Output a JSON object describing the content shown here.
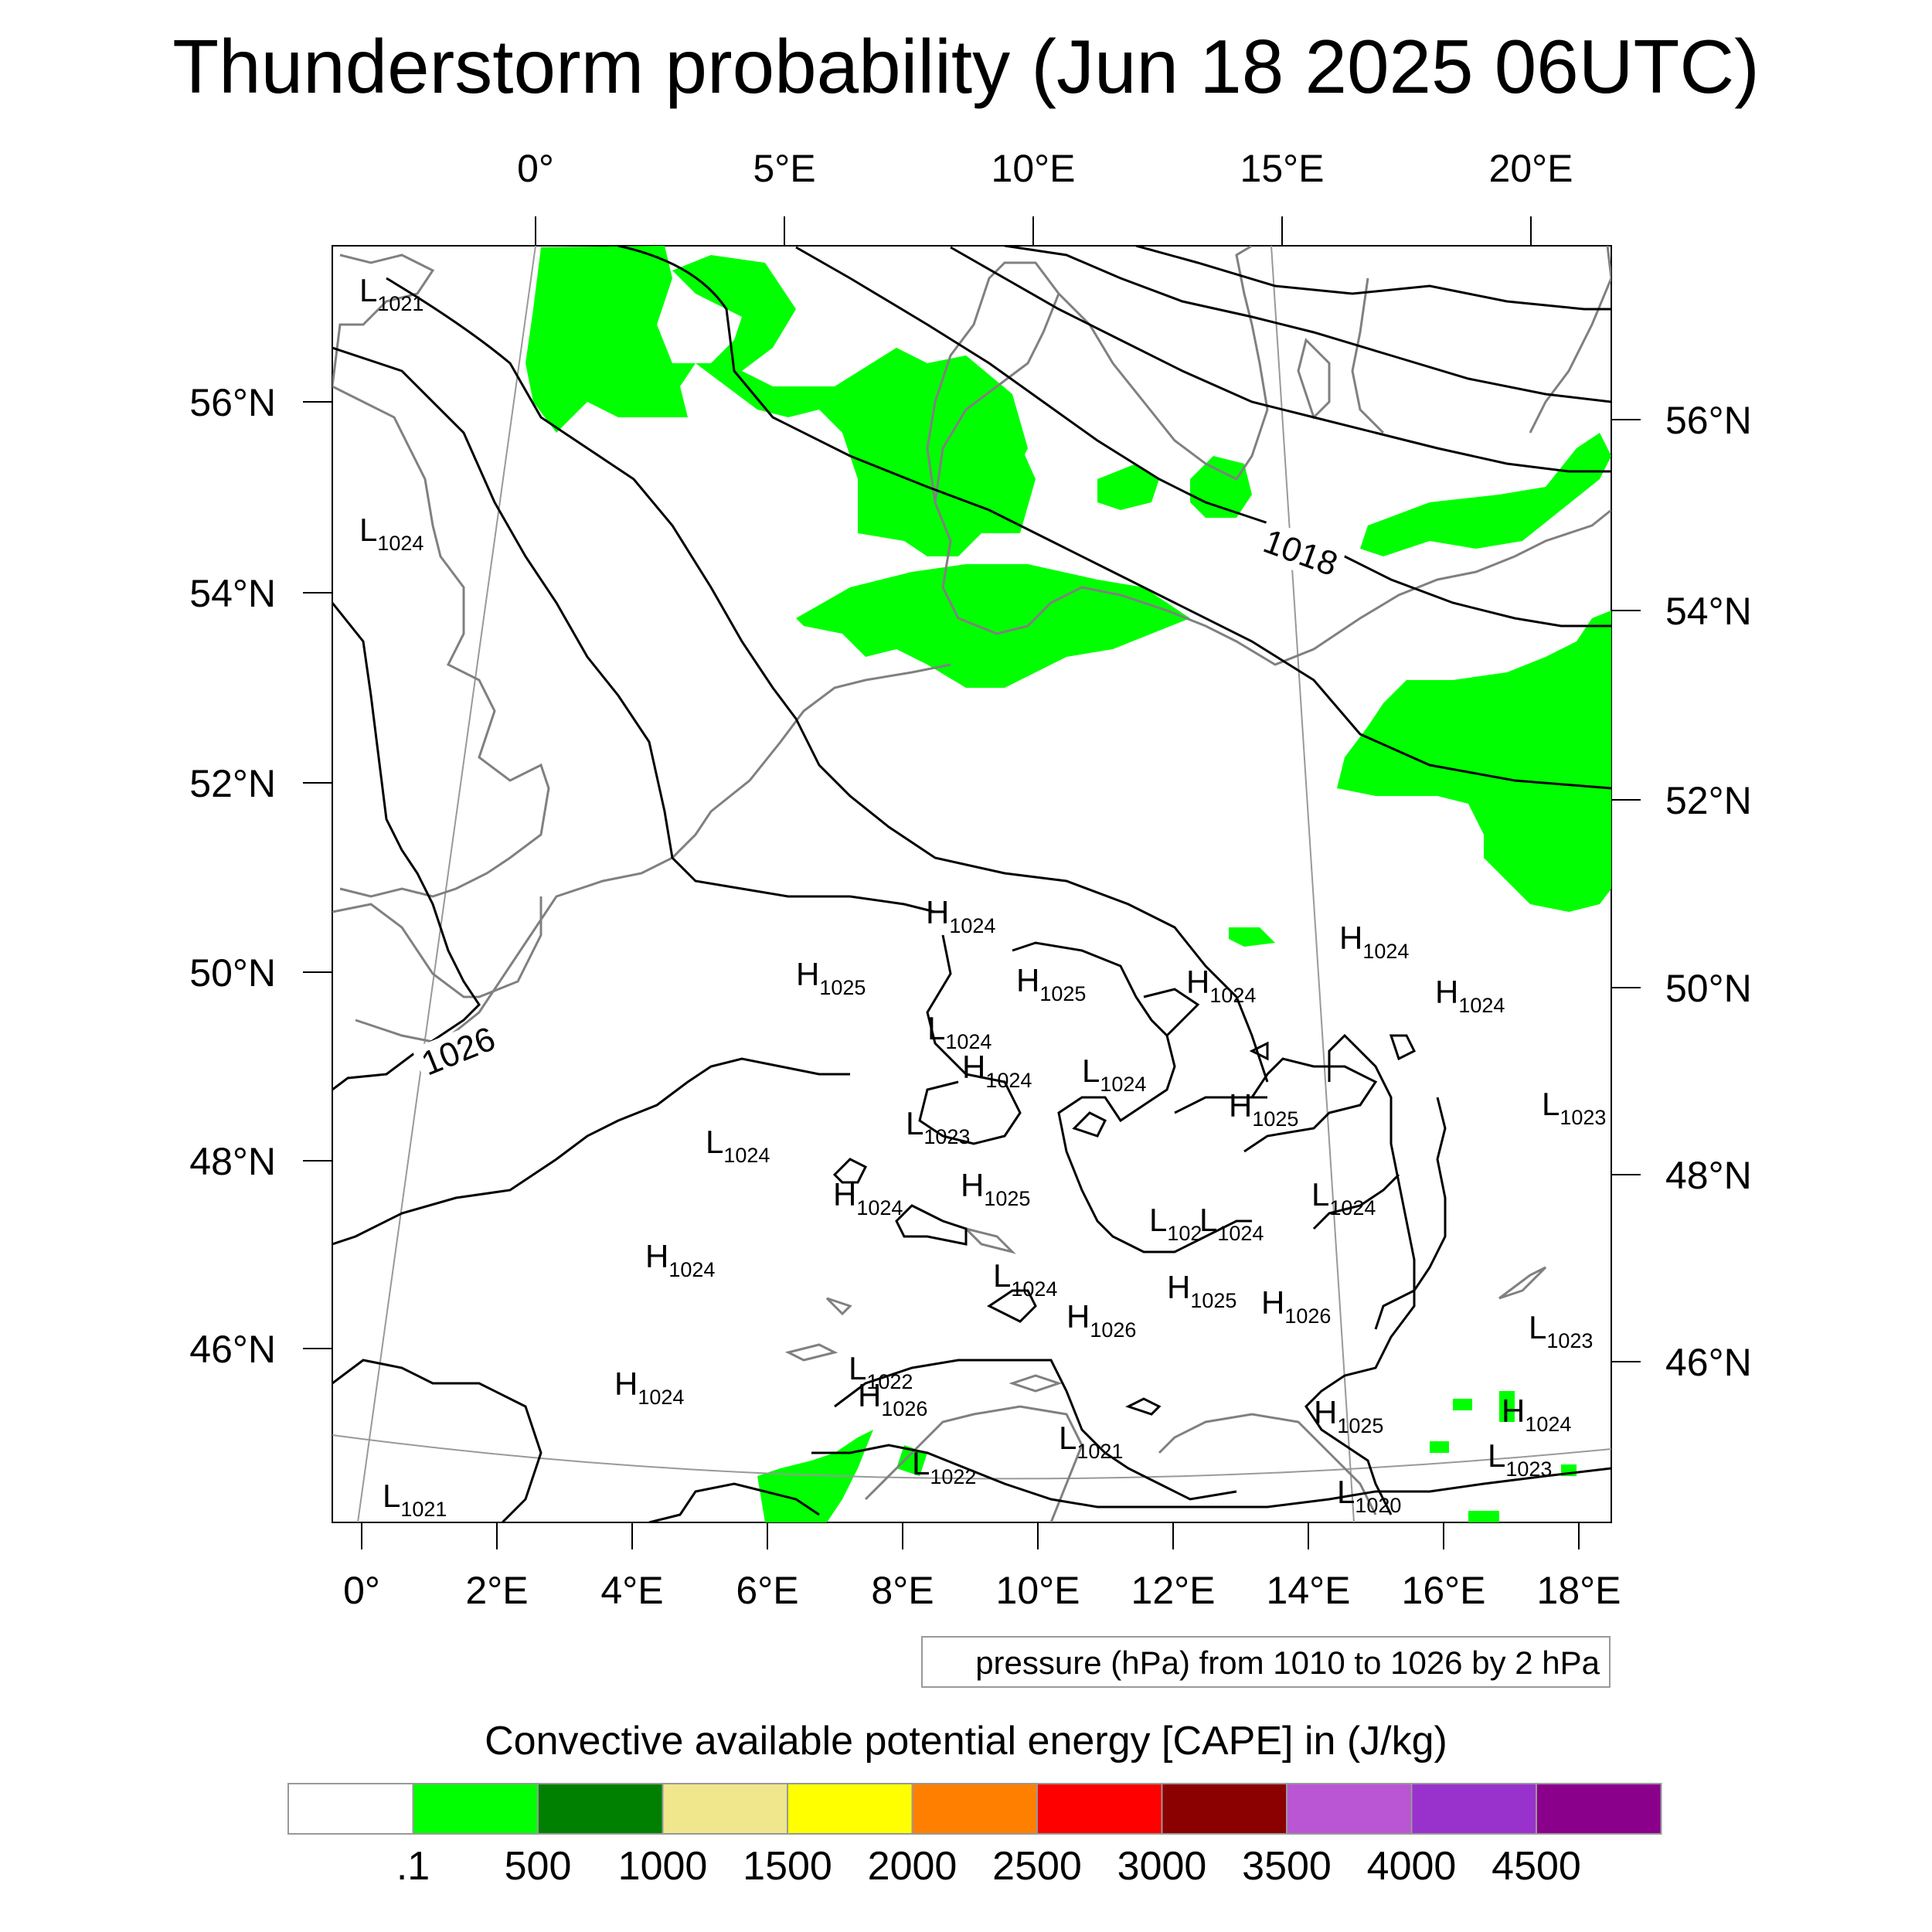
{
  "title": "Thunderstorm probability (Jun 18 2025 06UTC)",
  "map": {
    "top_lon_ticks": [
      "0°",
      "5°E",
      "10°E",
      "15°E",
      "20°E"
    ],
    "bottom_lon_ticks": [
      "0°",
      "2°E",
      "4°E",
      "6°E",
      "8°E",
      "10°E",
      "12°E",
      "14°E",
      "16°E",
      "18°E"
    ],
    "left_lat_ticks": [
      "56°N",
      "54°N",
      "52°N",
      "50°N",
      "48°N",
      "46°N"
    ],
    "right_lat_ticks": [
      "56°N",
      "54°N",
      "52°N",
      "50°N",
      "48°N",
      "46°N"
    ],
    "isobar_labels": [
      "1018",
      "1026"
    ],
    "pressure_centers": [
      {
        "t": "L",
        "v": "1021"
      },
      {
        "t": "L",
        "v": "1024"
      },
      {
        "t": "H",
        "v": "1024"
      },
      {
        "t": "H",
        "v": "1025"
      },
      {
        "t": "H",
        "v": "1025"
      },
      {
        "t": "H",
        "v": "1024"
      },
      {
        "t": "H",
        "v": "1024"
      },
      {
        "t": "H",
        "v": "1024"
      },
      {
        "t": "L",
        "v": "1024"
      },
      {
        "t": "H",
        "v": "1024"
      },
      {
        "t": "L",
        "v": "1024"
      },
      {
        "t": "H",
        "v": "1025"
      },
      {
        "t": "L",
        "v": "1023"
      },
      {
        "t": "L",
        "v": "1023"
      },
      {
        "t": "L",
        "v": "1024"
      },
      {
        "t": "H",
        "v": "1024"
      },
      {
        "t": "H",
        "v": "1025"
      },
      {
        "t": "L",
        "v": "102"
      },
      {
        "t": "L",
        "v": "1024"
      },
      {
        "t": "L",
        "v": "1024"
      },
      {
        "t": "H",
        "v": "1024"
      },
      {
        "t": "L",
        "v": "1024"
      },
      {
        "t": "H",
        "v": "1025"
      },
      {
        "t": "H",
        "v": "1026"
      },
      {
        "t": "H",
        "v": "1026"
      },
      {
        "t": "L",
        "v": "1023"
      },
      {
        "t": "H",
        "v": "1024"
      },
      {
        "t": "L",
        "v": "1022"
      },
      {
        "t": "H",
        "v": "1026"
      },
      {
        "t": "H",
        "v": "1025"
      },
      {
        "t": "H",
        "v": "1024"
      },
      {
        "t": "L",
        "v": "1021"
      },
      {
        "t": "L",
        "v": "1022"
      },
      {
        "t": "L",
        "v": "1023"
      },
      {
        "t": "L",
        "v": "1020"
      },
      {
        "t": "L",
        "v": "1021"
      }
    ]
  },
  "contour_note": "pressure (hPa) from 1010 to 1026 by 2 hPa",
  "colorbar": {
    "title": "Convective available potential energy [CAPE] in (J/kg)",
    "colors": [
      "#ffffff",
      "#00ff00",
      "#008000",
      "#f0e68c",
      "#ffff00",
      "#ff8000",
      "#ff0000",
      "#8b0000",
      "#ba55d3",
      "#9932cc",
      "#8b008b"
    ],
    "labels": [
      ".1",
      "500",
      "1000",
      "1500",
      "2000",
      "2500",
      "3000",
      "3500",
      "4000",
      "4500"
    ]
  }
}
